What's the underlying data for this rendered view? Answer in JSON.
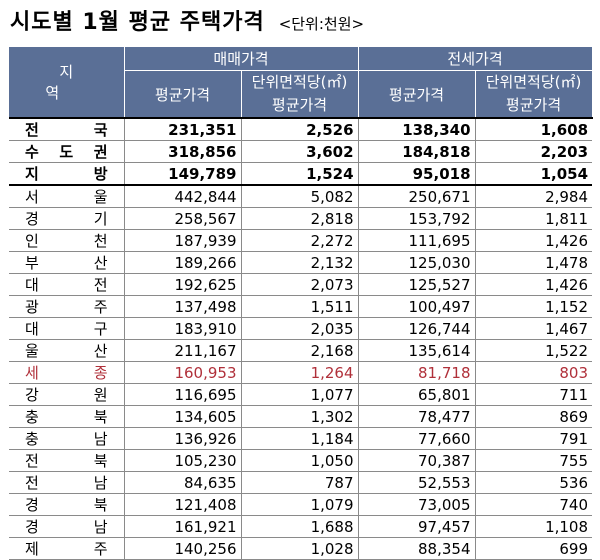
{
  "title": "시도별 1월 평균 주택가격",
  "unit": "<단위:천원>",
  "headers": {
    "region": "지 역",
    "sale_group": "매매가격",
    "jeonse_group": "전세가격",
    "avg_price": "평균가격",
    "unit_area_line1": "단위면적당(㎡)",
    "unit_area_line2": "평균가격"
  },
  "rows": [
    {
      "region": [
        "전",
        "국"
      ],
      "sale_avg": "231,351",
      "sale_unit": "2,526",
      "jeonse_avg": "138,340",
      "jeonse_unit": "1,608"
    },
    {
      "region": [
        "수",
        "도",
        "권"
      ],
      "sale_avg": "318,856",
      "sale_unit": "3,602",
      "jeonse_avg": "184,818",
      "jeonse_unit": "2,203"
    },
    {
      "region": [
        "지",
        "방"
      ],
      "sale_avg": "149,789",
      "sale_unit": "1,524",
      "jeonse_avg": "95,018",
      "jeonse_unit": "1,054"
    },
    {
      "region": [
        "서",
        "울"
      ],
      "sale_avg": "442,844",
      "sale_unit": "5,082",
      "jeonse_avg": "250,671",
      "jeonse_unit": "2,984"
    },
    {
      "region": [
        "경",
        "기"
      ],
      "sale_avg": "258,567",
      "sale_unit": "2,818",
      "jeonse_avg": "153,792",
      "jeonse_unit": "1,811"
    },
    {
      "region": [
        "인",
        "천"
      ],
      "sale_avg": "187,939",
      "sale_unit": "2,272",
      "jeonse_avg": "111,695",
      "jeonse_unit": "1,426"
    },
    {
      "region": [
        "부",
        "산"
      ],
      "sale_avg": "189,266",
      "sale_unit": "2,132",
      "jeonse_avg": "125,030",
      "jeonse_unit": "1,478"
    },
    {
      "region": [
        "대",
        "전"
      ],
      "sale_avg": "192,625",
      "sale_unit": "2,073",
      "jeonse_avg": "125,527",
      "jeonse_unit": "1,426"
    },
    {
      "region": [
        "광",
        "주"
      ],
      "sale_avg": "137,498",
      "sale_unit": "1,511",
      "jeonse_avg": "100,497",
      "jeonse_unit": "1,152"
    },
    {
      "region": [
        "대",
        "구"
      ],
      "sale_avg": "183,910",
      "sale_unit": "2,035",
      "jeonse_avg": "126,744",
      "jeonse_unit": "1,467"
    },
    {
      "region": [
        "울",
        "산"
      ],
      "sale_avg": "211,167",
      "sale_unit": "2,168",
      "jeonse_avg": "135,614",
      "jeonse_unit": "1,522"
    },
    {
      "region": [
        "세",
        "종"
      ],
      "sale_avg": "160,953",
      "sale_unit": "1,264",
      "jeonse_avg": "81,718",
      "jeonse_unit": "803"
    },
    {
      "region": [
        "강",
        "원"
      ],
      "sale_avg": "116,695",
      "sale_unit": "1,077",
      "jeonse_avg": "65,801",
      "jeonse_unit": "711"
    },
    {
      "region": [
        "충",
        "북"
      ],
      "sale_avg": "134,605",
      "sale_unit": "1,302",
      "jeonse_avg": "78,477",
      "jeonse_unit": "869"
    },
    {
      "region": [
        "충",
        "남"
      ],
      "sale_avg": "136,926",
      "sale_unit": "1,184",
      "jeonse_avg": "77,660",
      "jeonse_unit": "791"
    },
    {
      "region": [
        "전",
        "북"
      ],
      "sale_avg": "105,230",
      "sale_unit": "1,050",
      "jeonse_avg": "70,387",
      "jeonse_unit": "755"
    },
    {
      "region": [
        "전",
        "남"
      ],
      "sale_avg": "84,635",
      "sale_unit": "787",
      "jeonse_avg": "52,553",
      "jeonse_unit": "536"
    },
    {
      "region": [
        "경",
        "북"
      ],
      "sale_avg": "121,408",
      "sale_unit": "1,079",
      "jeonse_avg": "73,005",
      "jeonse_unit": "740"
    },
    {
      "region": [
        "경",
        "남"
      ],
      "sale_avg": "161,921",
      "sale_unit": "1,688",
      "jeonse_avg": "97,457",
      "jeonse_unit": "1,108"
    },
    {
      "region": [
        "제",
        "주"
      ],
      "sale_avg": "140,256",
      "sale_unit": "1,028",
      "jeonse_avg": "88,354",
      "jeonse_unit": "699"
    }
  ],
  "colors": {
    "header_bg": "#5a6f96",
    "highlight_text": "#b0303a"
  }
}
